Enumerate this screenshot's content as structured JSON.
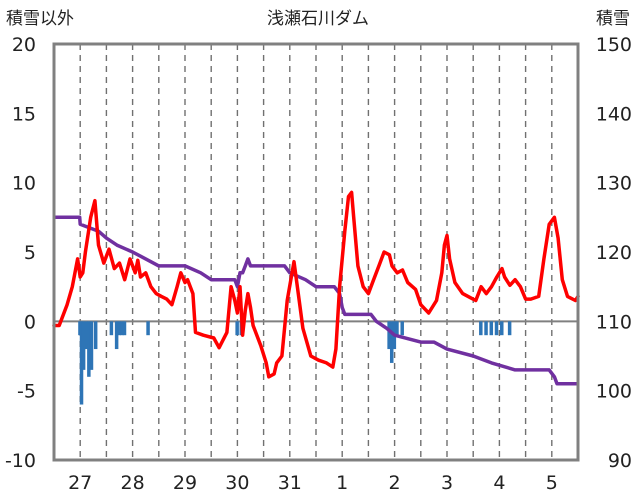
{
  "chart_data": {
    "type": "line",
    "title": "浅瀬石川ダム",
    "left_axis": {
      "label": "積雪以外",
      "range": [
        -10,
        20
      ],
      "ticks": [
        -10,
        -5,
        0,
        5,
        10,
        15,
        20
      ]
    },
    "right_axis": {
      "label": "積雪",
      "range": [
        90,
        150
      ],
      "ticks": [
        90,
        100,
        110,
        120,
        130,
        140,
        150
      ]
    },
    "x_axis": {
      "range": [
        26.5,
        36.5
      ],
      "labels": [
        "27",
        "28",
        "29",
        "30",
        "31",
        "1",
        "2",
        "3",
        "4",
        "5"
      ]
    },
    "grid": {
      "vertical": "dashed",
      "horizontal": "none"
    },
    "colors": {
      "temperature": "#ff0000",
      "snow_depth": "#7030a0",
      "precipitation": "#2e75b6",
      "frame": "#808080",
      "zero_line": "#808080"
    },
    "series": [
      {
        "axis": "left",
        "kind": "line",
        "color": "#ff0000",
        "points": [
          [
            26.5,
            -0.3
          ],
          [
            26.6,
            -0.3
          ],
          [
            26.75,
            1.2
          ],
          [
            26.85,
            2.5
          ],
          [
            26.95,
            4.5
          ],
          [
            27.0,
            3.2
          ],
          [
            27.05,
            3.5
          ],
          [
            27.1,
            5.0
          ],
          [
            27.2,
            7.5
          ],
          [
            27.28,
            8.7
          ],
          [
            27.35,
            5.5
          ],
          [
            27.45,
            4.2
          ],
          [
            27.55,
            5.2
          ],
          [
            27.65,
            3.8
          ],
          [
            27.75,
            4.2
          ],
          [
            27.85,
            3.0
          ],
          [
            27.95,
            4.5
          ],
          [
            28.05,
            3.5
          ],
          [
            28.1,
            4.4
          ],
          [
            28.15,
            3.2
          ],
          [
            28.25,
            3.5
          ],
          [
            28.35,
            2.5
          ],
          [
            28.45,
            2.0
          ],
          [
            28.55,
            1.8
          ],
          [
            28.65,
            1.6
          ],
          [
            28.75,
            1.2
          ],
          [
            28.85,
            2.5
          ],
          [
            28.92,
            3.5
          ],
          [
            29.0,
            2.8
          ],
          [
            29.05,
            3.0
          ],
          [
            29.15,
            2.0
          ],
          [
            29.2,
            -0.8
          ],
          [
            29.35,
            -1.0
          ],
          [
            29.55,
            -1.2
          ],
          [
            29.65,
            -1.9
          ],
          [
            29.8,
            -0.8
          ],
          [
            29.88,
            2.5
          ],
          [
            29.95,
            1.5
          ],
          [
            30.0,
            0.6
          ],
          [
            30.05,
            2.5
          ],
          [
            30.1,
            -1.0
          ],
          [
            30.15,
            0.8
          ],
          [
            30.2,
            2.0
          ],
          [
            30.25,
            1.0
          ],
          [
            30.3,
            -0.3
          ],
          [
            30.45,
            -1.8
          ],
          [
            30.55,
            -3.0
          ],
          [
            30.6,
            -4.0
          ],
          [
            30.7,
            -3.8
          ],
          [
            30.75,
            -3.0
          ],
          [
            30.85,
            -2.5
          ],
          [
            30.95,
            1.5
          ],
          [
            31.08,
            4.3
          ],
          [
            31.18,
            1.5
          ],
          [
            31.25,
            -0.5
          ],
          [
            31.4,
            -2.5
          ],
          [
            31.55,
            -2.8
          ],
          [
            31.7,
            -3.0
          ],
          [
            31.82,
            -3.3
          ],
          [
            31.88,
            -2.0
          ],
          [
            31.95,
            2.5
          ],
          [
            32.05,
            6.5
          ],
          [
            32.12,
            9.0
          ],
          [
            32.18,
            9.3
          ],
          [
            32.22,
            7.5
          ],
          [
            32.3,
            4.0
          ],
          [
            32.4,
            2.5
          ],
          [
            32.5,
            2.0
          ],
          [
            32.6,
            3.0
          ],
          [
            32.7,
            4.0
          ],
          [
            32.8,
            5.0
          ],
          [
            32.9,
            4.8
          ],
          [
            32.95,
            4.0
          ],
          [
            33.05,
            3.5
          ],
          [
            33.15,
            3.7
          ],
          [
            33.25,
            2.8
          ],
          [
            33.4,
            2.3
          ],
          [
            33.5,
            1.2
          ],
          [
            33.65,
            0.6
          ],
          [
            33.8,
            1.5
          ],
          [
            33.9,
            3.5
          ],
          [
            33.95,
            5.5
          ],
          [
            34.0,
            6.2
          ],
          [
            34.05,
            4.5
          ],
          [
            34.15,
            2.8
          ],
          [
            34.3,
            2.0
          ],
          [
            34.45,
            1.7
          ],
          [
            34.55,
            1.5
          ],
          [
            34.65,
            2.5
          ],
          [
            34.75,
            2.0
          ],
          [
            34.85,
            2.5
          ],
          [
            34.95,
            3.2
          ],
          [
            35.05,
            3.8
          ],
          [
            35.1,
            3.2
          ],
          [
            35.2,
            2.6
          ],
          [
            35.3,
            3.0
          ],
          [
            35.4,
            2.5
          ],
          [
            35.5,
            1.6
          ],
          [
            35.6,
            1.6
          ],
          [
            35.75,
            1.8
          ],
          [
            35.85,
            4.5
          ],
          [
            35.95,
            7.0
          ],
          [
            36.05,
            7.5
          ],
          [
            36.12,
            6.0
          ],
          [
            36.2,
            3.0
          ],
          [
            36.3,
            1.8
          ],
          [
            36.45,
            1.5
          ],
          [
            36.5,
            1.8
          ]
        ]
      },
      {
        "axis": "right",
        "kind": "step",
        "color": "#7030a0",
        "points": [
          [
            26.5,
            125
          ],
          [
            26.99,
            125
          ],
          [
            27.0,
            124
          ],
          [
            27.35,
            123
          ],
          [
            27.5,
            122
          ],
          [
            27.7,
            121
          ],
          [
            28.0,
            120
          ],
          [
            28.25,
            119
          ],
          [
            28.5,
            118
          ],
          [
            29.0,
            118
          ],
          [
            29.3,
            117
          ],
          [
            29.5,
            116
          ],
          [
            29.7,
            116
          ],
          [
            29.95,
            116
          ],
          [
            30.0,
            115
          ],
          [
            30.05,
            117
          ],
          [
            30.1,
            117
          ],
          [
            30.15,
            118
          ],
          [
            30.2,
            119
          ],
          [
            30.25,
            118
          ],
          [
            30.6,
            118
          ],
          [
            30.9,
            118
          ],
          [
            31.0,
            117
          ],
          [
            31.3,
            116
          ],
          [
            31.5,
            115
          ],
          [
            31.85,
            115
          ],
          [
            31.95,
            114
          ],
          [
            32.0,
            112
          ],
          [
            32.05,
            111
          ],
          [
            32.55,
            111
          ],
          [
            32.65,
            110
          ],
          [
            32.85,
            109
          ],
          [
            33.0,
            108
          ],
          [
            33.5,
            107
          ],
          [
            33.75,
            107
          ],
          [
            34.0,
            106
          ],
          [
            34.5,
            105
          ],
          [
            34.85,
            104
          ],
          [
            35.3,
            103
          ],
          [
            35.95,
            103
          ],
          [
            36.05,
            102
          ],
          [
            36.1,
            101
          ],
          [
            36.5,
            101
          ]
        ]
      },
      {
        "axis": "left",
        "kind": "bar",
        "color": "#2e75b6",
        "points": [
          [
            27.0,
            -1.0
          ],
          [
            27.03,
            -6.0
          ],
          [
            27.07,
            -3.5
          ],
          [
            27.12,
            -2.0
          ],
          [
            27.17,
            -4.0
          ],
          [
            27.22,
            -3.5
          ],
          [
            27.3,
            -2.0
          ],
          [
            27.6,
            -1.0
          ],
          [
            27.7,
            -2.0
          ],
          [
            27.75,
            -1.0
          ],
          [
            27.8,
            -1.0
          ],
          [
            27.85,
            -1.0
          ],
          [
            28.3,
            -1.0
          ],
          [
            30.0,
            -1.0
          ],
          [
            30.08,
            -1.0
          ],
          [
            32.9,
            -2.0
          ],
          [
            32.95,
            -3.0
          ],
          [
            33.0,
            -2.0
          ],
          [
            33.05,
            -1.0
          ],
          [
            33.15,
            -1.0
          ],
          [
            34.65,
            -1.0
          ],
          [
            34.75,
            -1.0
          ],
          [
            34.85,
            -1.0
          ],
          [
            34.95,
            -1.0
          ],
          [
            35.05,
            -1.0
          ],
          [
            35.2,
            -1.0
          ]
        ]
      }
    ]
  }
}
